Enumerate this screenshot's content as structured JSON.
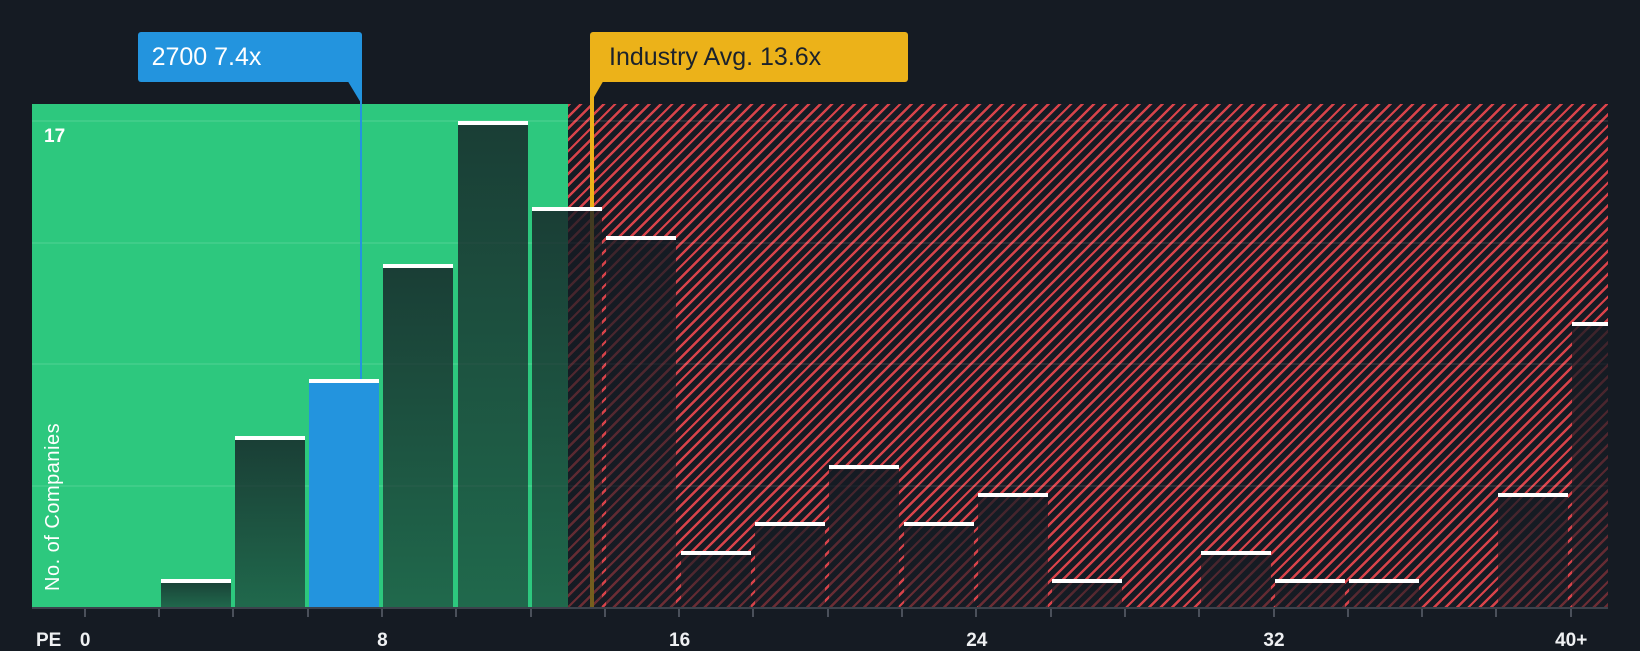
{
  "tooltips": {
    "company": {
      "ticker": "2700",
      "pe": "7.4x",
      "label": "2700 7.4x"
    },
    "industry": {
      "name": "Industry Avg.",
      "pe": "13.6x",
      "label": "Industry Avg. 13.6x"
    }
  },
  "axes": {
    "x_title": "PE",
    "y_title": "No. of Companies",
    "y_max_label": "17",
    "x_ticks": [
      {
        "label": "0",
        "value": 0
      },
      {
        "label": "8",
        "value": 8
      },
      {
        "label": "16",
        "value": 16
      },
      {
        "label": "24",
        "value": 24
      },
      {
        "label": "32",
        "value": 32
      },
      {
        "label": "40+",
        "value": 40
      }
    ]
  },
  "colors": {
    "background": "#151b23",
    "below_average_zone": "#2dc87e",
    "above_average_hatch": "#d8434a",
    "company_highlight": "#2394de",
    "industry_average": "#ecb219",
    "bar_cap": "#ffffff"
  },
  "chart_data": {
    "type": "bar",
    "title": "",
    "xlabel": "PE",
    "ylabel": "No. of Companies",
    "categories": [
      "0-2",
      "2-4",
      "4-6",
      "6-8",
      "8-10",
      "10-12",
      "12-14",
      "14-16",
      "16-18",
      "18-20",
      "20-22",
      "22-24",
      "24-26",
      "26-28",
      "28-30",
      "30-32",
      "32-34",
      "34-36",
      "36-38",
      "38-40",
      "40+"
    ],
    "values": [
      0,
      1,
      6,
      8,
      12,
      17,
      14,
      13,
      2,
      3,
      5,
      3,
      4,
      1,
      0,
      2,
      1,
      1,
      0,
      4,
      10
    ],
    "x_tick_labels": [
      "0",
      "8",
      "16",
      "24",
      "32",
      "40+"
    ],
    "y_tick_labels": [
      "17"
    ],
    "ylim": [
      0,
      17
    ],
    "xlim": [
      0,
      40
    ],
    "grid": true,
    "gridlines_at": [
      4.25,
      8.5,
      12.75,
      17
    ],
    "highlight": {
      "label": "2700",
      "value": 7.4,
      "category": "6-8"
    },
    "reference_line": {
      "label": "Industry Avg.",
      "value": 13.6
    },
    "annotations": [
      "2700 7.4x",
      "Industry Avg. 13.6x"
    ]
  }
}
